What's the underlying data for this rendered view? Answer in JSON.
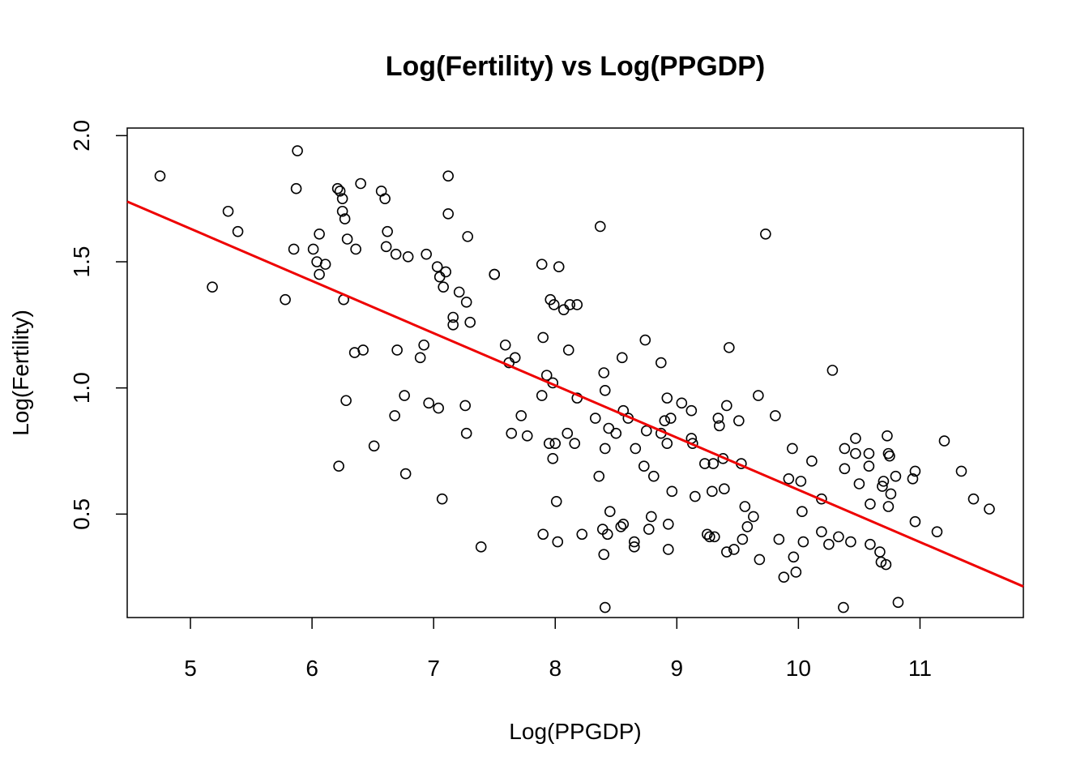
{
  "chart_data": {
    "type": "scatter",
    "title": "Log(Fertility) vs Log(PPGDP)",
    "xlabel": "Log(PPGDP)",
    "ylabel": "Log(Fertility)",
    "xlim": [
      4.48,
      11.85
    ],
    "ylim": [
      0.09,
      2.03
    ],
    "xticks": [
      5,
      6,
      7,
      8,
      9,
      10,
      11
    ],
    "yticks": [
      0.5,
      1.0,
      1.5,
      2.0
    ],
    "ytick_labels": [
      "0.5",
      "1.0",
      "1.5",
      "2.0"
    ],
    "grid": false,
    "legend": "none",
    "point_color": "#000000",
    "line_color": "#ee0000",
    "fit_line": {
      "intercept": 2.666,
      "slope": -0.207
    },
    "points": [
      [
        4.75,
        1.84
      ],
      [
        5.18,
        1.4
      ],
      [
        5.31,
        1.7
      ],
      [
        5.39,
        1.62
      ],
      [
        5.78,
        1.35
      ],
      [
        5.85,
        1.55
      ],
      [
        5.87,
        1.79
      ],
      [
        5.88,
        1.94
      ],
      [
        6.01,
        1.55
      ],
      [
        6.04,
        1.5
      ],
      [
        6.06,
        1.61
      ],
      [
        6.06,
        1.45
      ],
      [
        6.11,
        1.49
      ],
      [
        6.21,
        1.79
      ],
      [
        6.22,
        0.69
      ],
      [
        6.23,
        1.78
      ],
      [
        6.25,
        1.75
      ],
      [
        6.25,
        1.7
      ],
      [
        6.26,
        1.35
      ],
      [
        6.27,
        1.67
      ],
      [
        6.28,
        0.95
      ],
      [
        6.29,
        1.59
      ],
      [
        6.35,
        1.14
      ],
      [
        6.36,
        1.55
      ],
      [
        6.4,
        1.81
      ],
      [
        6.42,
        1.15
      ],
      [
        6.51,
        0.77
      ],
      [
        6.57,
        1.78
      ],
      [
        6.6,
        1.75
      ],
      [
        6.61,
        1.56
      ],
      [
        6.62,
        1.62
      ],
      [
        6.68,
        0.89
      ],
      [
        6.69,
        1.53
      ],
      [
        6.7,
        1.15
      ],
      [
        6.76,
        0.97
      ],
      [
        6.77,
        0.66
      ],
      [
        6.79,
        1.52
      ],
      [
        6.89,
        1.12
      ],
      [
        6.92,
        1.17
      ],
      [
        6.94,
        1.53
      ],
      [
        6.96,
        0.94
      ],
      [
        7.03,
        1.48
      ],
      [
        7.04,
        0.92
      ],
      [
        7.05,
        1.44
      ],
      [
        7.07,
        0.56
      ],
      [
        7.08,
        1.4
      ],
      [
        7.1,
        1.46
      ],
      [
        7.12,
        1.84
      ],
      [
        7.12,
        1.69
      ],
      [
        7.16,
        1.28
      ],
      [
        7.16,
        1.25
      ],
      [
        7.21,
        1.38
      ],
      [
        7.26,
        0.93
      ],
      [
        7.27,
        0.82
      ],
      [
        7.27,
        1.34
      ],
      [
        7.28,
        1.6
      ],
      [
        7.3,
        1.26
      ],
      [
        7.39,
        0.37
      ],
      [
        7.5,
        1.45
      ],
      [
        7.5,
        1.45
      ],
      [
        7.59,
        1.17
      ],
      [
        7.62,
        1.1
      ],
      [
        7.64,
        0.82
      ],
      [
        7.67,
        1.12
      ],
      [
        7.72,
        0.89
      ],
      [
        7.77,
        0.81
      ],
      [
        7.89,
        1.49
      ],
      [
        7.89,
        0.97
      ],
      [
        7.9,
        0.42
      ],
      [
        7.9,
        1.2
      ],
      [
        7.93,
        1.05
      ],
      [
        7.95,
        0.78
      ],
      [
        7.96,
        1.35
      ],
      [
        7.98,
        1.02
      ],
      [
        7.98,
        0.72
      ],
      [
        7.99,
        1.33
      ],
      [
        8.0,
        0.78
      ],
      [
        8.01,
        0.55
      ],
      [
        8.02,
        0.39
      ],
      [
        8.03,
        1.48
      ],
      [
        8.07,
        1.31
      ],
      [
        8.1,
        0.82
      ],
      [
        8.11,
        1.15
      ],
      [
        8.12,
        1.33
      ],
      [
        8.16,
        0.78
      ],
      [
        8.18,
        0.96
      ],
      [
        8.18,
        1.33
      ],
      [
        8.22,
        0.42
      ],
      [
        8.33,
        0.88
      ],
      [
        8.36,
        0.65
      ],
      [
        8.37,
        1.64
      ],
      [
        8.39,
        0.44
      ],
      [
        8.4,
        0.34
      ],
      [
        8.4,
        1.06
      ],
      [
        8.41,
        0.76
      ],
      [
        8.41,
        0.99
      ],
      [
        8.41,
        0.13
      ],
      [
        8.43,
        0.42
      ],
      [
        8.44,
        0.84
      ],
      [
        8.45,
        0.51
      ],
      [
        8.5,
        0.82
      ],
      [
        8.54,
        0.45
      ],
      [
        8.55,
        1.12
      ],
      [
        8.56,
        0.91
      ],
      [
        8.56,
        0.46
      ],
      [
        8.6,
        0.88
      ],
      [
        8.65,
        0.39
      ],
      [
        8.65,
        0.37
      ],
      [
        8.66,
        0.76
      ],
      [
        8.73,
        0.69
      ],
      [
        8.74,
        1.19
      ],
      [
        8.75,
        0.83
      ],
      [
        8.77,
        0.44
      ],
      [
        8.79,
        0.49
      ],
      [
        8.81,
        0.65
      ],
      [
        8.87,
        0.82
      ],
      [
        8.87,
        1.1
      ],
      [
        8.9,
        0.87
      ],
      [
        8.92,
        0.96
      ],
      [
        8.92,
        0.78
      ],
      [
        8.93,
        0.46
      ],
      [
        8.93,
        0.36
      ],
      [
        8.95,
        0.88
      ],
      [
        8.96,
        0.59
      ],
      [
        9.04,
        0.94
      ],
      [
        9.12,
        0.91
      ],
      [
        9.12,
        0.8
      ],
      [
        9.13,
        0.78
      ],
      [
        9.15,
        0.57
      ],
      [
        9.23,
        0.7
      ],
      [
        9.25,
        0.42
      ],
      [
        9.27,
        0.41
      ],
      [
        9.29,
        0.59
      ],
      [
        9.3,
        0.7
      ],
      [
        9.31,
        0.41
      ],
      [
        9.34,
        0.88
      ],
      [
        9.35,
        0.85
      ],
      [
        9.38,
        0.72
      ],
      [
        9.39,
        0.6
      ],
      [
        9.41,
        0.35
      ],
      [
        9.41,
        0.93
      ],
      [
        9.43,
        1.16
      ],
      [
        9.47,
        0.36
      ],
      [
        9.51,
        0.87
      ],
      [
        9.53,
        0.7
      ],
      [
        9.54,
        0.4
      ],
      [
        9.56,
        0.53
      ],
      [
        9.58,
        0.45
      ],
      [
        9.63,
        0.49
      ],
      [
        9.67,
        0.97
      ],
      [
        9.68,
        0.32
      ],
      [
        9.73,
        1.61
      ],
      [
        9.81,
        0.89
      ],
      [
        9.84,
        0.4
      ],
      [
        9.88,
        0.25
      ],
      [
        9.92,
        0.64
      ],
      [
        9.95,
        0.76
      ],
      [
        9.96,
        0.33
      ],
      [
        9.98,
        0.27
      ],
      [
        10.02,
        0.63
      ],
      [
        10.03,
        0.51
      ],
      [
        10.04,
        0.39
      ],
      [
        10.11,
        0.71
      ],
      [
        10.19,
        0.43
      ],
      [
        10.19,
        0.56
      ],
      [
        10.25,
        0.38
      ],
      [
        10.28,
        1.07
      ],
      [
        10.33,
        0.41
      ],
      [
        10.37,
        0.13
      ],
      [
        10.38,
        0.68
      ],
      [
        10.38,
        0.76
      ],
      [
        10.43,
        0.39
      ],
      [
        10.47,
        0.8
      ],
      [
        10.47,
        0.74
      ],
      [
        10.5,
        0.62
      ],
      [
        10.58,
        0.74
      ],
      [
        10.58,
        0.69
      ],
      [
        10.59,
        0.54
      ],
      [
        10.59,
        0.38
      ],
      [
        10.67,
        0.35
      ],
      [
        10.68,
        0.31
      ],
      [
        10.69,
        0.61
      ],
      [
        10.7,
        0.63
      ],
      [
        10.72,
        0.3
      ],
      [
        10.73,
        0.81
      ],
      [
        10.74,
        0.53
      ],
      [
        10.74,
        0.74
      ],
      [
        10.75,
        0.73
      ],
      [
        10.76,
        0.58
      ],
      [
        10.8,
        0.65
      ],
      [
        10.82,
        0.15
      ],
      [
        10.94,
        0.64
      ],
      [
        10.96,
        0.67
      ],
      [
        10.96,
        0.47
      ],
      [
        11.14,
        0.43
      ],
      [
        11.2,
        0.79
      ],
      [
        11.34,
        0.67
      ],
      [
        11.44,
        0.56
      ],
      [
        11.57,
        0.52
      ]
    ]
  }
}
